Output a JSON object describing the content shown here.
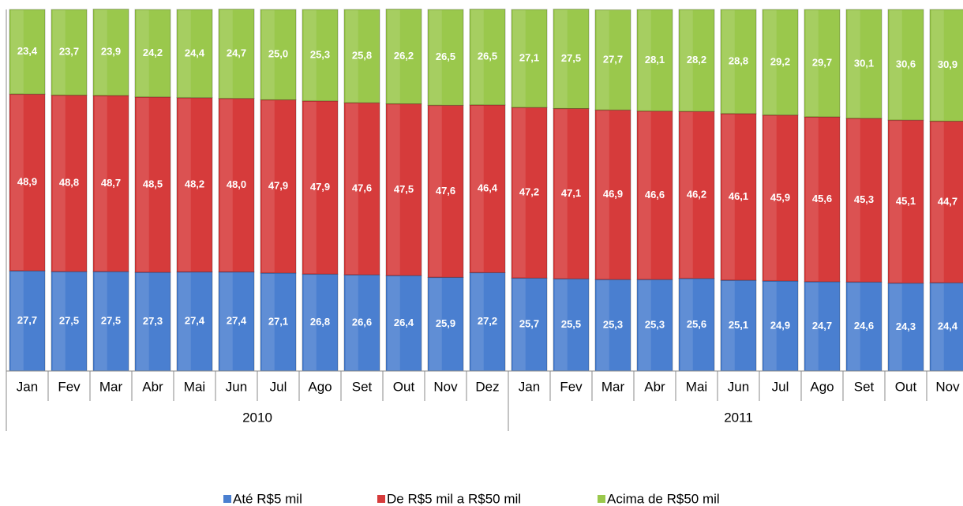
{
  "chart_data": {
    "type": "stacked_bar",
    "category_groups": [
      {
        "group": "2010",
        "items": [
          "Jan",
          "Fev",
          "Mar",
          "Abr",
          "Mai",
          "Jun",
          "Jul",
          "Ago",
          "Set",
          "Out",
          "Nov",
          "Dez"
        ]
      },
      {
        "group": "2011",
        "items": [
          "Jan",
          "Fev",
          "Mar",
          "Abr",
          "Mai",
          "Jun",
          "Jul",
          "Ago",
          "Set",
          "Out",
          "Nov"
        ]
      }
    ],
    "ylim": [
      0,
      100
    ],
    "series": [
      {
        "name": "Até R$5 mil",
        "color": "#4a7fd0",
        "values": [
          27.7,
          27.5,
          27.5,
          27.3,
          27.4,
          27.4,
          27.1,
          26.8,
          26.6,
          26.4,
          25.9,
          27.2,
          25.7,
          25.5,
          25.3,
          25.3,
          25.6,
          25.1,
          24.9,
          24.7,
          24.6,
          24.3,
          24.4
        ],
        "value_labels": [
          "27,7",
          "27,5",
          "27,5",
          "27,3",
          "27,4",
          "27,4",
          "27,1",
          "26,8",
          "26,6",
          "26,4",
          "25,9",
          "27,2",
          "25,7",
          "25,5",
          "25,3",
          "25,3",
          "25,6",
          "25,1",
          "24,9",
          "24,7",
          "24,6",
          "24,3",
          "24,4"
        ]
      },
      {
        "name": "De R$5 mil a R$50 mil",
        "color": "#d63b3b",
        "values": [
          48.9,
          48.8,
          48.7,
          48.5,
          48.2,
          48.0,
          47.9,
          47.9,
          47.6,
          47.5,
          47.6,
          46.4,
          47.2,
          47.1,
          46.9,
          46.6,
          46.2,
          46.1,
          45.9,
          45.6,
          45.3,
          45.1,
          44.7
        ],
        "value_labels": [
          "48,9",
          "48,8",
          "48,7",
          "48,5",
          "48,2",
          "48,0",
          "47,9",
          "47,9",
          "47,6",
          "47,5",
          "47,6",
          "46,4",
          "47,2",
          "47,1",
          "46,9",
          "46,6",
          "46,2",
          "46,1",
          "45,9",
          "45,6",
          "45,3",
          "45,1",
          "44,7"
        ]
      },
      {
        "name": "Acima de R$50 mil",
        "color": "#9ac84c",
        "values": [
          23.4,
          23.7,
          23.9,
          24.2,
          24.4,
          24.7,
          25.0,
          25.3,
          25.8,
          26.2,
          26.5,
          26.5,
          27.1,
          27.5,
          27.7,
          28.1,
          28.2,
          28.8,
          29.2,
          29.7,
          30.1,
          30.6,
          30.9
        ],
        "value_labels": [
          "23,4",
          "23,7",
          "23,9",
          "24,2",
          "24,4",
          "24,7",
          "25,0",
          "25,3",
          "25,8",
          "26,2",
          "26,5",
          "26,5",
          "27,1",
          "27,5",
          "27,7",
          "28,1",
          "28,2",
          "28,8",
          "29,2",
          "29,7",
          "30,1",
          "30,6",
          "30,9"
        ]
      }
    ]
  }
}
